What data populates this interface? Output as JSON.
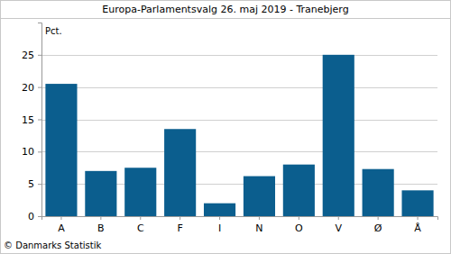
{
  "chart_data": {
    "type": "bar",
    "title": "Europa-Parlamentsvalg 26. maj 2019 - Tranebjerg",
    "ylabel": "Pct.",
    "source": "© Danmarks Statistik",
    "categories": [
      "A",
      "B",
      "C",
      "F",
      "I",
      "N",
      "O",
      "V",
      "Ø",
      "Å"
    ],
    "values": [
      20.5,
      7.0,
      7.5,
      13.5,
      2.0,
      6.2,
      8.0,
      25.0,
      7.3,
      4.0
    ],
    "color": "#0b5e8e",
    "ylim": [
      0,
      30
    ],
    "yticks": [
      0,
      5,
      10,
      15,
      20,
      25
    ],
    "grid": true
  }
}
